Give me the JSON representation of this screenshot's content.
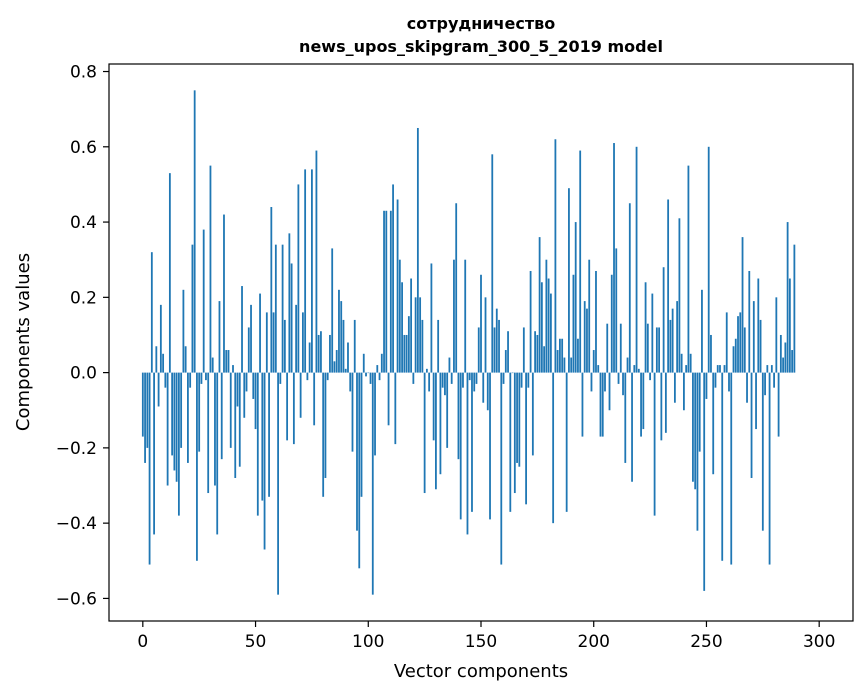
{
  "chart_data": {
    "type": "bar",
    "title_line1": "сотрудничество",
    "title_line2": "news_upos_skipgram_300_5_2019 model",
    "xlabel": "Vector components",
    "ylabel": "Components values",
    "xlim": [
      -15,
      315
    ],
    "ylim": [
      -0.66,
      0.82
    ],
    "xticks": [
      0,
      50,
      100,
      150,
      200,
      250,
      300
    ],
    "xtick_labels": [
      "0",
      "50",
      "100",
      "150",
      "200",
      "250",
      "300"
    ],
    "yticks": [
      -0.6,
      -0.4,
      -0.2,
      0.0,
      0.2,
      0.4,
      0.6,
      0.8
    ],
    "ytick_labels": [
      "−0.6",
      "−0.4",
      "−0.2",
      "0.0",
      "0.2",
      "0.4",
      "0.6",
      "0.8"
    ],
    "color": "#1f77b4",
    "values": [
      -0.17,
      -0.24,
      -0.2,
      -0.51,
      0.32,
      -0.43,
      0.07,
      -0.09,
      0.18,
      0.05,
      -0.04,
      -0.3,
      0.53,
      -0.22,
      -0.26,
      -0.29,
      -0.38,
      -0.2,
      0.22,
      0.07,
      -0.24,
      -0.04,
      0.34,
      0.75,
      -0.5,
      -0.21,
      -0.03,
      0.38,
      -0.02,
      -0.32,
      0.55,
      0.04,
      -0.3,
      -0.43,
      0.19,
      -0.23,
      0.42,
      0.06,
      0.06,
      -0.2,
      0.02,
      -0.28,
      -0.09,
      -0.25,
      0.23,
      -0.12,
      -0.05,
      0.12,
      0.18,
      -0.07,
      -0.15,
      -0.38,
      0.21,
      -0.34,
      -0.47,
      0.16,
      -0.33,
      0.44,
      0.16,
      0.34,
      -0.59,
      -0.03,
      0.34,
      0.14,
      -0.18,
      0.37,
      0.29,
      -0.19,
      0.18,
      0.5,
      -0.12,
      0.16,
      0.54,
      -0.02,
      0.08,
      0.54,
      -0.14,
      0.59,
      0.1,
      0.11,
      -0.33,
      -0.28,
      -0.02,
      0.1,
      0.33,
      0.03,
      0.06,
      0.22,
      0.19,
      0.14,
      0.01,
      0.08,
      -0.05,
      -0.21,
      0.14,
      -0.42,
      -0.52,
      -0.33,
      0.05,
      -0.01,
      0.0,
      -0.03,
      -0.59,
      -0.22,
      0.02,
      -0.02,
      0.05,
      0.43,
      0.43,
      -0.14,
      0.43,
      0.5,
      -0.19,
      0.46,
      0.3,
      0.24,
      0.1,
      0.1,
      0.15,
      0.25,
      -0.03,
      0.2,
      0.65,
      0.2,
      0.14,
      -0.32,
      0.01,
      -0.05,
      0.29,
      -0.18,
      -0.31,
      0.14,
      -0.27,
      -0.04,
      -0.06,
      -0.2,
      0.04,
      -0.03,
      0.3,
      0.45,
      -0.23,
      -0.39,
      -0.04,
      0.3,
      -0.43,
      -0.02,
      -0.37,
      -0.05,
      -0.03,
      0.12,
      0.26,
      -0.08,
      0.2,
      -0.1,
      -0.39,
      0.58,
      0.12,
      0.17,
      0.14,
      -0.51,
      -0.03,
      0.06,
      0.11,
      -0.37,
      0.0,
      -0.32,
      -0.24,
      -0.25,
      -0.04,
      0.12,
      -0.35,
      -0.04,
      0.27,
      -0.22,
      0.11,
      0.1,
      0.36,
      0.24,
      0.07,
      0.3,
      0.25,
      0.21,
      -0.4,
      0.62,
      0.06,
      0.09,
      0.09,
      0.04,
      -0.37,
      0.49,
      0.04,
      0.26,
      0.4,
      0.09,
      0.59,
      -0.17,
      0.19,
      0.17,
      0.3,
      -0.05,
      0.06,
      0.27,
      0.02,
      -0.17,
      -0.17,
      -0.05,
      0.13,
      -0.1,
      0.26,
      0.61,
      0.33,
      -0.03,
      0.13,
      -0.06,
      -0.24,
      0.04,
      0.45,
      -0.29,
      0.02,
      0.6,
      0.01,
      -0.17,
      -0.15,
      0.24,
      0.13,
      -0.02,
      0.21,
      -0.38,
      0.12,
      0.12,
      -0.18,
      0.28,
      -0.16,
      0.46,
      0.14,
      0.17,
      -0.08,
      0.19,
      0.41,
      0.05,
      -0.1,
      0.02,
      0.55,
      0.05,
      -0.29,
      -0.31,
      -0.42,
      -0.21,
      0.22,
      -0.58,
      -0.07,
      0.6,
      0.1,
      -0.27,
      -0.04,
      0.02,
      0.02,
      -0.5,
      0.02,
      0.16,
      -0.05,
      -0.51,
      0.07,
      0.09,
      0.15,
      0.16,
      0.36,
      0.12,
      -0.08,
      0.27,
      -0.28,
      0.19,
      -0.15,
      0.25,
      0.14,
      -0.42,
      -0.06,
      0.02,
      -0.51,
      0.02,
      -0.04,
      0.2,
      -0.17,
      0.1,
      0.04,
      0.08,
      0.4,
      0.25,
      0.06,
      0.34
    ]
  }
}
